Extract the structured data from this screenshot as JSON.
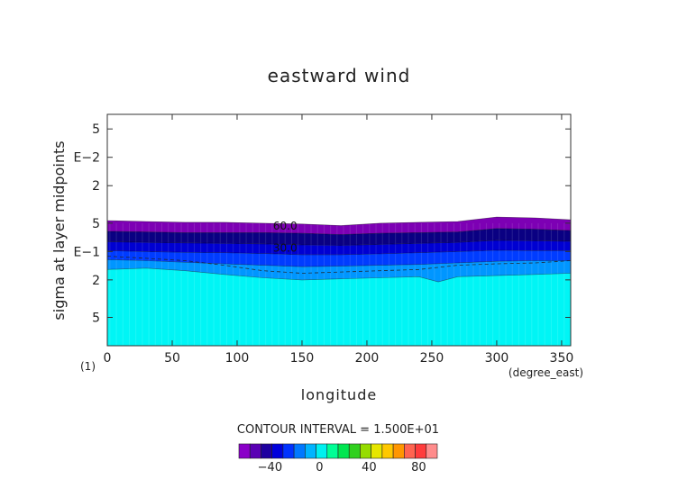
{
  "chart_data": {
    "type": "heatmap",
    "title": "eastward wind",
    "xlabel": "longitude",
    "ylabel": "sigma at layer midpoints",
    "x_unit_label": "(degree_east)",
    "x_ticks": [
      "0",
      "50",
      "100",
      "150",
      "200",
      "250",
      "300",
      "350"
    ],
    "x_tick_values": [
      0,
      50,
      100,
      150,
      200,
      250,
      300,
      350
    ],
    "xlim": [
      0,
      357
    ],
    "y_scale": "log",
    "ylim": [
      0.0035,
      1.0
    ],
    "y_ticks": [
      "5",
      "E−2",
      "2",
      "5",
      "E−1",
      "2",
      "5"
    ],
    "y_tick_values": [
      0.005,
      0.01,
      0.02,
      0.05,
      0.1,
      0.2,
      0.5
    ],
    "panel_label": "(1)",
    "contour_interval_label": "CONTOUR INTERVAL = 1.500E+01",
    "contour_labels": [
      {
        "text": "60.0",
        "x": 137,
        "y": 0.0535
      },
      {
        "text": "30.0",
        "x": 137,
        "y": 0.0915
      }
    ],
    "colorbar": {
      "tick_labels": [
        "−40",
        "0",
        "40",
        "80"
      ],
      "tick_values": [
        -40,
        0,
        40,
        80
      ],
      "colors": [
        "#8a00c8",
        "#5a00b4",
        "#1e00a0",
        "#0000dc",
        "#0032ff",
        "#0078ff",
        "#00b4ff",
        "#00f0f0",
        "#00ff96",
        "#00e650",
        "#30d01e",
        "#96dc00",
        "#e6e600",
        "#ffc800",
        "#ff9600",
        "#ff6450",
        "#ff3c3c",
        "#ff8c8c"
      ]
    },
    "fields": [
      {
        "name": "top_boundary",
        "lon": [
          0,
          30,
          60,
          90,
          120,
          150,
          180,
          210,
          240,
          270,
          300,
          330,
          357
        ],
        "sigma": [
          0.047,
          0.048,
          0.049,
          0.049,
          0.05,
          0.051,
          0.053,
          0.05,
          0.049,
          0.048,
          0.043,
          0.044,
          0.046
        ]
      },
      {
        "name": "level_60",
        "lon": [
          0,
          30,
          60,
          90,
          120,
          150,
          180,
          210,
          240,
          270,
          300,
          330,
          357
        ],
        "sigma": [
          0.061,
          0.062,
          0.063,
          0.063,
          0.063,
          0.064,
          0.066,
          0.064,
          0.063,
          0.062,
          0.057,
          0.058,
          0.06
        ]
      },
      {
        "name": "level_45",
        "lon": [
          0,
          30,
          60,
          90,
          120,
          150,
          180,
          210,
          240,
          270,
          300,
          330,
          357
        ],
        "sigma": [
          0.079,
          0.08,
          0.081,
          0.082,
          0.083,
          0.085,
          0.086,
          0.084,
          0.082,
          0.08,
          0.076,
          0.077,
          0.078
        ]
      },
      {
        "name": "level_30",
        "lon": [
          0,
          30,
          60,
          90,
          120,
          150,
          180,
          210,
          240,
          270,
          300,
          330,
          357
        ],
        "sigma": [
          0.098,
          0.1,
          0.102,
          0.103,
          0.105,
          0.108,
          0.108,
          0.106,
          0.103,
          0.1,
          0.097,
          0.098,
          0.098
        ]
      },
      {
        "name": "level_15",
        "lon": [
          0,
          30,
          60,
          90,
          120,
          150,
          180,
          210,
          240,
          270,
          300,
          330,
          357
        ],
        "sigma": [
          0.122,
          0.125,
          0.13,
          0.135,
          0.14,
          0.145,
          0.143,
          0.14,
          0.137,
          0.132,
          0.127,
          0.125,
          0.125
        ]
      },
      {
        "name": "level_0_dashed",
        "lon": [
          0,
          30,
          60,
          90,
          120,
          150,
          180,
          210,
          240,
          270,
          300,
          330,
          357
        ],
        "sigma": [
          0.112,
          0.118,
          0.125,
          0.14,
          0.16,
          0.17,
          0.165,
          0.16,
          0.155,
          0.14,
          0.135,
          0.132,
          0.125
        ]
      },
      {
        "name": "level_neg15",
        "lon": [
          0,
          30,
          60,
          90,
          120,
          150,
          180,
          210,
          240,
          255,
          270,
          300,
          330,
          357
        ],
        "sigma": [
          0.155,
          0.15,
          0.16,
          0.175,
          0.19,
          0.2,
          0.195,
          0.19,
          0.185,
          0.21,
          0.185,
          0.18,
          0.175,
          0.17
        ]
      }
    ]
  }
}
